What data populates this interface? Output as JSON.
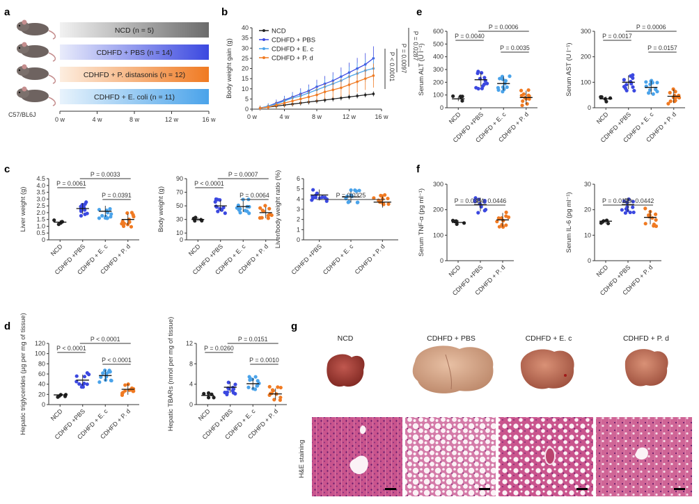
{
  "colors": {
    "ncd": "#222222",
    "pbs": "#3b48e0",
    "ec": "#4aa3ea",
    "pd": "#f07a22"
  },
  "panels": {
    "a": "a",
    "b": "b",
    "c": "c",
    "d": "d",
    "e": "e",
    "f": "f",
    "g": "g"
  },
  "panel_a": {
    "groups": [
      {
        "label": "NCD (n = 5)",
        "color": "#888888"
      },
      {
        "label": "CDHFD + PBS (n = 14)",
        "color": "#3b48e0"
      },
      {
        "label": "CDHFD + P. distasonis (n = 12)",
        "color": "#f07a22"
      },
      {
        "label": "CDHFD + E. coli (n = 11)",
        "color": "#4aa3ea"
      }
    ],
    "strain": "C57/BL6J",
    "time_ticks": [
      "0 w",
      "4 w",
      "8 w",
      "12 w",
      "16 w"
    ]
  },
  "chart_data": [
    {
      "id": "b",
      "type": "line",
      "ylabel": "Body weight gain (g)",
      "x_ticks": [
        "0 w",
        "4 w",
        "8 w",
        "12 w",
        "16 w"
      ],
      "ylim": [
        0,
        40
      ],
      "y_ticks": [
        "0",
        "5",
        "10",
        "15",
        "20",
        "25",
        "30",
        "35",
        "40"
      ],
      "x": [
        1,
        2,
        3,
        4,
        5,
        6,
        7,
        8,
        9,
        10,
        11,
        12,
        13,
        14,
        15
      ],
      "legend": [
        "NCD",
        "CDHFD + PBS",
        "CDHFD + E. c",
        "CDHFD + P. d"
      ],
      "series": [
        {
          "name": "NCD",
          "values": [
            0.5,
            1,
            1.5,
            2,
            2.5,
            3,
            3.5,
            4,
            4.5,
            5,
            5.5,
            6,
            6.5,
            7,
            7.5
          ]
        },
        {
          "name": "CDHFD + PBS",
          "values": [
            0.5,
            1.5,
            3,
            4.5,
            6,
            7.5,
            9,
            11,
            12.5,
            14,
            16,
            18,
            20,
            22,
            25
          ]
        },
        {
          "name": "CDHFD + E. c",
          "values": [
            0.5,
            1.5,
            2.5,
            4,
            5.5,
            6.5,
            8,
            9.5,
            11,
            12.5,
            14,
            16,
            17.5,
            19,
            20
          ]
        },
        {
          "name": "CDHFD + P. d",
          "values": [
            0.5,
            1,
            2,
            3,
            4,
            5,
            6,
            7,
            8.5,
            9.5,
            10.5,
            12,
            13.5,
            15,
            16.5
          ]
        }
      ],
      "pvals": [
        "P = 0.0287",
        "P < 0.0001",
        "P = 0.0097"
      ]
    },
    {
      "id": "c1",
      "type": "scatter",
      "ylabel": "Liver weight (g)",
      "ylim": [
        0,
        4.5
      ],
      "y_ticks": [
        "0",
        "0.5",
        "1.0",
        "1.5",
        "2.0",
        "2.5",
        "3.0",
        "3.5",
        "4.0",
        "4.5"
      ],
      "categories": [
        "NCD",
        "CDHFD +PBS",
        "CDHFD + E. c",
        "CDHFD + P. d"
      ],
      "means": [
        1.3,
        2.3,
        2.1,
        1.5
      ],
      "comparisons": [
        {
          "a": 0,
          "b": 1,
          "label": "P = 0.0061",
          "level": 1
        },
        {
          "a": 1,
          "b": 3,
          "label": "P = 0.0033",
          "level": 2
        },
        {
          "a": 2,
          "b": 3,
          "label": "P = 0.0391",
          "level": 0
        }
      ]
    },
    {
      "id": "c2",
      "type": "scatter",
      "ylabel": "Body weight (g)",
      "ylim": [
        0,
        90
      ],
      "y_ticks": [
        "0",
        "10",
        "30",
        "50",
        "70",
        "90"
      ],
      "categories": [
        "NCD",
        "CDHFD +PBS",
        "CDHFD + E. c",
        "CDHFD + P. d"
      ],
      "means": [
        30,
        50,
        49,
        40
      ],
      "comparisons": [
        {
          "a": 0,
          "b": 1,
          "label": "P < 0.0001",
          "level": 1
        },
        {
          "a": 1,
          "b": 3,
          "label": "P = 0.0007",
          "level": 2
        },
        {
          "a": 2,
          "b": 3,
          "label": "P = 0.0064",
          "level": 0
        }
      ]
    },
    {
      "id": "c3",
      "type": "scatter",
      "ylabel": "Liver/body weight ratio (%)",
      "ylim": [
        0,
        6
      ],
      "y_ticks": [
        "0",
        "1",
        "2",
        "3",
        "4",
        "5",
        "6"
      ],
      "categories": [
        "CDHFD +PBS",
        "CDHFD + E. c",
        "CDHFD + P. d"
      ],
      "means": [
        4.4,
        4.2,
        3.7
      ],
      "comparisons": [
        {
          "a": 0,
          "b": 2,
          "label": "P = 0.0325",
          "level": 0
        }
      ]
    },
    {
      "id": "d1",
      "type": "scatter",
      "ylabel": "Hepatic triglycerides (µg per mg of tissue)",
      "ylim": [
        0,
        120
      ],
      "y_ticks": [
        "0",
        "20",
        "40",
        "60",
        "80",
        "100",
        "120"
      ],
      "categories": [
        "NCD",
        "CDHFD +PBS",
        "CDHFD + E. c",
        "CDHFD + P. d"
      ],
      "means": [
        19,
        48,
        57,
        30
      ],
      "comparisons": [
        {
          "a": 0,
          "b": 1,
          "label": "P < 0.0001",
          "level": 1
        },
        {
          "a": 1,
          "b": 3,
          "label": "P < 0.0001",
          "level": 2
        },
        {
          "a": 2,
          "b": 3,
          "label": "P < 0.0001",
          "level": 0
        }
      ]
    },
    {
      "id": "d2",
      "type": "scatter",
      "ylabel": "Hepatic TBARs (nmol per mg of tissue)",
      "ylim": [
        0,
        12
      ],
      "y_ticks": [
        "0",
        "4",
        "8",
        "12"
      ],
      "categories": [
        "NCD",
        "CDHFD +PBS",
        "CDHFD + E. c",
        "CDHFD + P. d"
      ],
      "means": [
        1.8,
        3.4,
        4.1,
        2.1
      ],
      "comparisons": [
        {
          "a": 0,
          "b": 1,
          "label": "P = 0.0260",
          "level": 1
        },
        {
          "a": 1,
          "b": 3,
          "label": "P = 0.0151",
          "level": 2
        },
        {
          "a": 2,
          "b": 3,
          "label": "P = 0.0010",
          "level": 0
        }
      ]
    },
    {
      "id": "e1",
      "type": "scatter",
      "ylabel": "Serum ALT (U l⁻¹)",
      "ylim": [
        0,
        600
      ],
      "y_ticks": [
        "0",
        "100",
        "200",
        "300",
        "400",
        "500",
        "600"
      ],
      "categories": [
        "NCD",
        "CDHFD +PBS",
        "CDHFD + E. c",
        "CDHFD + P. d"
      ],
      "means": [
        70,
        220,
        190,
        80
      ],
      "comparisons": [
        {
          "a": 0,
          "b": 1,
          "label": "P = 0.0040",
          "level": 1
        },
        {
          "a": 1,
          "b": 3,
          "label": "P = 0.0006",
          "level": 2
        },
        {
          "a": 2,
          "b": 3,
          "label": "P = 0.0035",
          "level": 0
        }
      ]
    },
    {
      "id": "e2",
      "type": "scatter",
      "ylabel": "Serum AST (U l⁻¹)",
      "ylim": [
        0,
        300
      ],
      "y_ticks": [
        "0",
        "100",
        "200",
        "300"
      ],
      "categories": [
        "NCD",
        "CDHFD +PBS",
        "CDHFD + E. c",
        "CDHFD + P. d"
      ],
      "means": [
        35,
        100,
        80,
        45
      ],
      "comparisons": [
        {
          "a": 0,
          "b": 1,
          "label": "P = 0.0017",
          "level": 1
        },
        {
          "a": 1,
          "b": 3,
          "label": "P = 0.0006",
          "level": 2
        },
        {
          "a": 2,
          "b": 3,
          "label": "P = 0.0157",
          "level": 0
        }
      ]
    },
    {
      "id": "f1",
      "type": "scatter",
      "ylabel": "Serum TNF-α (pg ml⁻¹)",
      "ylim": [
        0,
        300
      ],
      "y_ticks": [
        "0",
        "100",
        "200",
        "300"
      ],
      "categories": [
        "NCD",
        "CDHFD +PBS",
        "CDHFD + P. d"
      ],
      "means": [
        150,
        220,
        160
      ],
      "comparisons": [
        {
          "a": 0,
          "b": 1,
          "label": "P = 0.0304",
          "level": 0
        },
        {
          "a": 1,
          "b": 2,
          "label": "P = 0.0446",
          "level": 0
        }
      ]
    },
    {
      "id": "f2",
      "type": "scatter",
      "ylabel": "Serum IL-6 (pg ml⁻¹)",
      "ylim": [
        0,
        30
      ],
      "y_ticks": [
        "0",
        "10",
        "20",
        "30"
      ],
      "categories": [
        "NCD",
        "CDHFD +PBS",
        "CDHFD + P. d"
      ],
      "means": [
        15.5,
        22,
        17
      ],
      "comparisons": [
        {
          "a": 0,
          "b": 1,
          "label": "P = 0.0119",
          "level": 0
        },
        {
          "a": 1,
          "b": 2,
          "label": "P = 0.0442",
          "level": 0
        }
      ]
    }
  ],
  "panel_g": {
    "titles": [
      "NCD",
      "CDHFD + PBS",
      "CDHFD + E. c",
      "CDHFD + P. d"
    ],
    "row_label": "H&E staining"
  }
}
